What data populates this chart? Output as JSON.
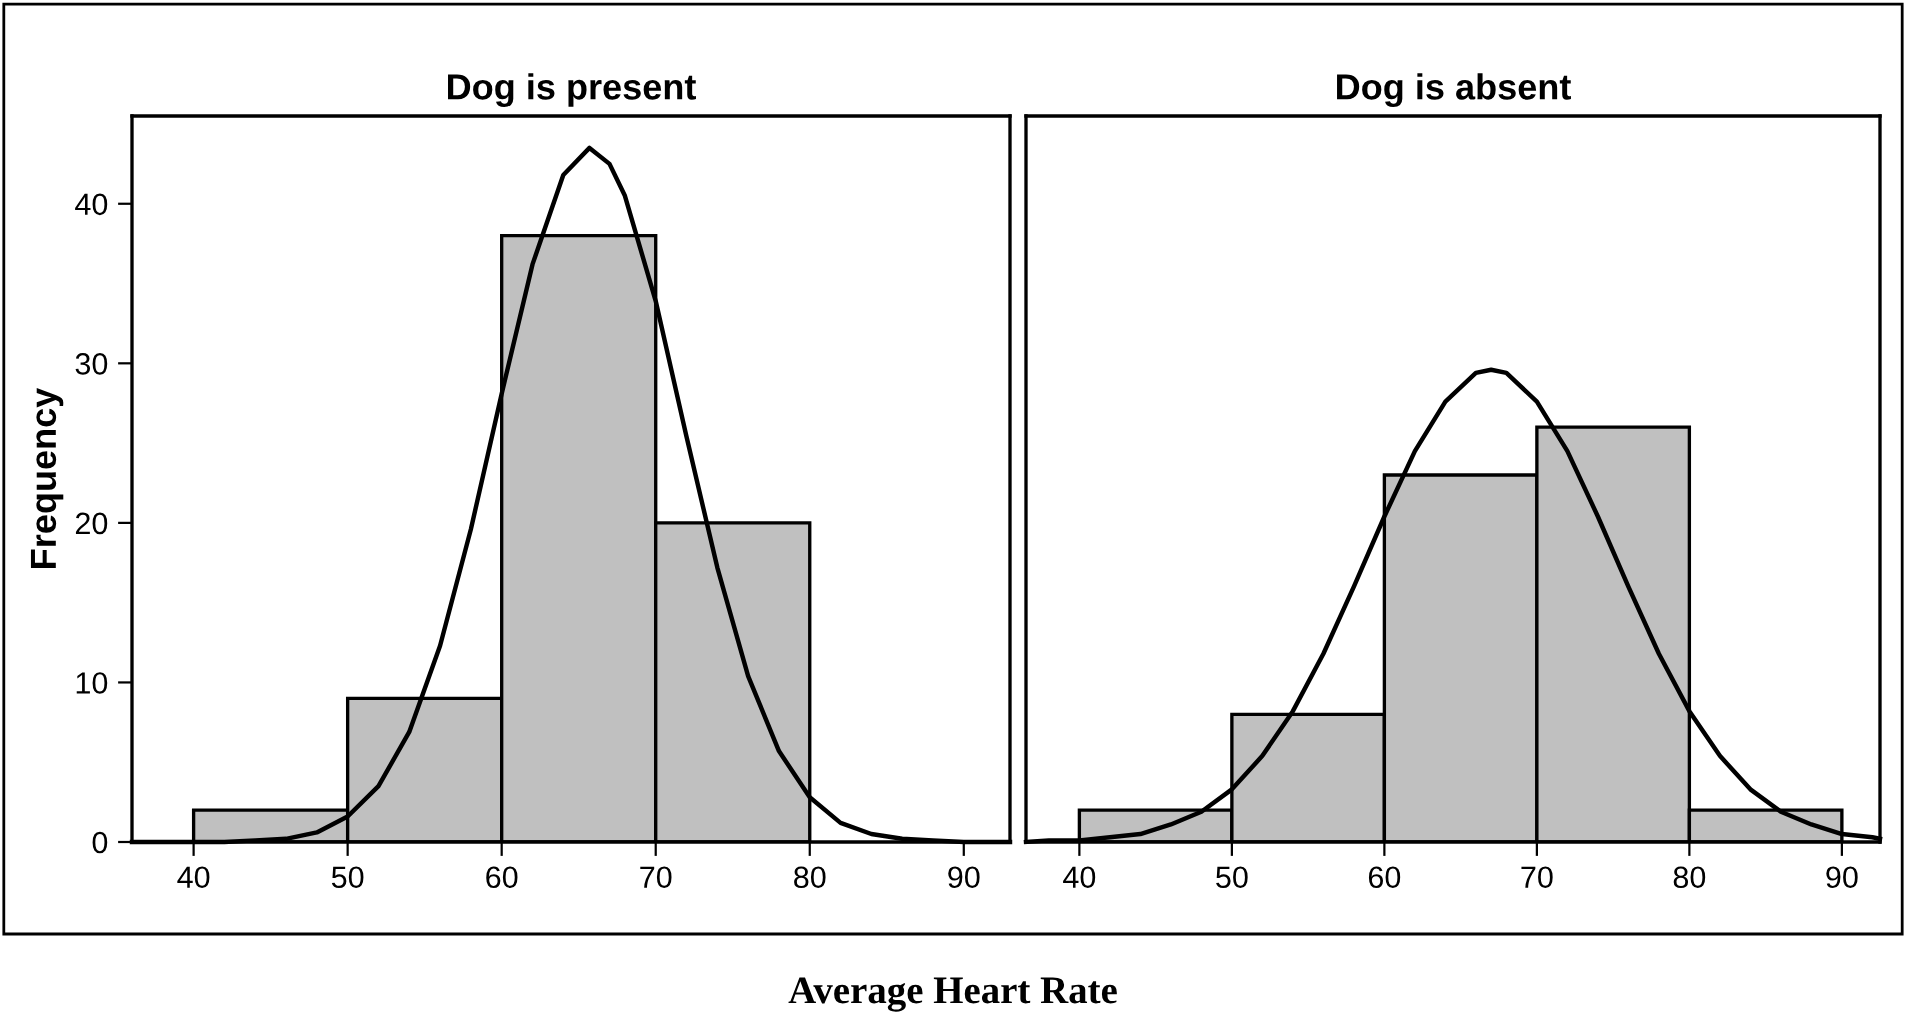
{
  "chart_data": [
    {
      "type": "histogram",
      "title": "Dog is present",
      "ylabel": "Frequency",
      "xlabel": "Average Heart Rate",
      "bins": [
        40,
        50,
        60,
        70,
        80
      ],
      "values": [
        2,
        9,
        38,
        20
      ],
      "color": "#c0c0c0",
      "series": [
        {
          "type": "line",
          "color": "#000000",
          "x": [
            36,
            38,
            40,
            42,
            44,
            46,
            48,
            50,
            52,
            54,
            56,
            58,
            60,
            62,
            64,
            65.7,
            67,
            68,
            70,
            72,
            74,
            76,
            78,
            80,
            82,
            84,
            86,
            88,
            90,
            93
          ],
          "values": [
            0,
            0,
            0,
            0,
            0.1,
            0.2,
            0.6,
            1.6,
            3.5,
            6.9,
            12.3,
            19.6,
            28.1,
            36.2,
            41.8,
            43.5,
            42.5,
            40.5,
            33.9,
            25.4,
            17.2,
            10.4,
            5.7,
            2.8,
            1.2,
            0.5,
            0.2,
            0.1,
            0,
            0
          ]
        }
      ],
      "xlim": [
        36,
        93
      ],
      "ylim": [
        0,
        45.5
      ],
      "xticks": [
        40,
        50,
        60,
        70,
        80,
        90
      ],
      "yticks": [
        0,
        10,
        20,
        30,
        40
      ],
      "grid": false
    },
    {
      "type": "histogram",
      "title": "Dog is absent",
      "bins": [
        40,
        50,
        60,
        70,
        80,
        90
      ],
      "values": [
        2,
        8,
        23,
        26,
        2
      ],
      "color": "#c0c0c0",
      "series": [
        {
          "type": "line",
          "color": "#000000",
          "x": [
            36.5,
            38,
            40,
            42,
            44,
            46,
            48,
            50,
            52,
            54,
            56,
            58,
            60,
            62,
            64,
            66,
            67,
            68,
            70,
            72,
            74,
            76,
            78,
            80,
            82,
            84,
            86,
            88,
            90,
            92,
            92.5
          ],
          "values": [
            0,
            0.1,
            0.1,
            0.3,
            0.5,
            1.1,
            1.9,
            3.3,
            5.4,
            8.2,
            11.8,
            16.0,
            20.4,
            24.5,
            27.6,
            29.4,
            29.6,
            29.4,
            27.6,
            24.5,
            20.4,
            16.0,
            11.8,
            8.2,
            5.4,
            3.3,
            1.9,
            1.1,
            0.5,
            0.3,
            0.2
          ]
        }
      ],
      "xlim": [
        36.5,
        92.5
      ],
      "ylim": [
        0,
        45.5
      ],
      "xticks": [
        40,
        50,
        60,
        70,
        80,
        90
      ],
      "yticks": [
        0,
        10,
        20,
        30,
        40
      ],
      "tick_labels": "x",
      "grid": false
    }
  ]
}
